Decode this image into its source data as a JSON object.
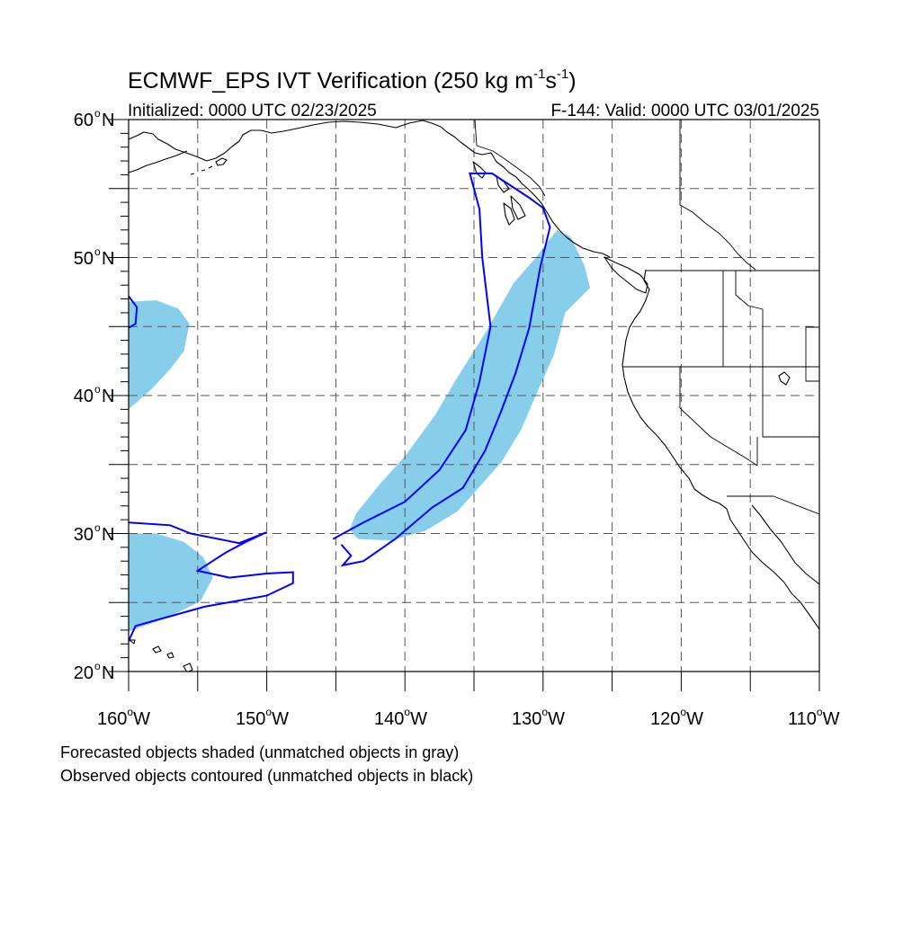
{
  "title": {
    "main": "ECMWF_EPS IVT Verification (250 kg m",
    "sup1": "-1",
    "mid": "s",
    "sup2": "-1",
    "end": ")"
  },
  "initialized": "Initialized: 0000 UTC 02/23/2025",
  "valid": "F-144: Valid: 0000 UTC 03/01/2025",
  "lat_labels": [
    "60",
    "50",
    "40",
    "30",
    "20"
  ],
  "lat_suffix": "N",
  "lon_labels": [
    "160",
    "150",
    "140",
    "130",
    "120",
    "110"
  ],
  "lon_suffix": "W",
  "degree_symbol": "o",
  "legend": {
    "line1": "Forecasted objects shaded (unmatched objects in gray)",
    "line2": "Observed objects contoured (unmatched objects in black)"
  },
  "colors": {
    "forecast_fill": "#87ceeb",
    "observed_contour": "#0000ff",
    "coastline": "#000000",
    "grid": "#555555"
  },
  "map_data": {
    "projection": "cylindrical equidistant",
    "lon_range": [
      -160,
      -110
    ],
    "lat_range": [
      20,
      60
    ],
    "grid_lon_step": 5,
    "grid_lat_step": 5,
    "forecast_objects": [
      {
        "name": "atmospheric-river",
        "matched": true,
        "lonlat": [
          [
            -143.4,
            29.6
          ],
          [
            -141,
            29.5
          ],
          [
            -138.5,
            30.2
          ],
          [
            -136.2,
            31.6
          ],
          [
            -134.5,
            33.5
          ],
          [
            -133,
            35.2
          ],
          [
            -131.6,
            37.5
          ],
          [
            -130.3,
            40.5
          ],
          [
            -129.2,
            43
          ],
          [
            -128.4,
            46
          ],
          [
            -126.6,
            47.8
          ],
          [
            -127,
            49.4
          ],
          [
            -128,
            51.5
          ],
          [
            -129,
            52
          ],
          [
            -130.6,
            49.9
          ],
          [
            -132.1,
            48.2
          ],
          [
            -134.2,
            44.5
          ],
          [
            -136.4,
            41
          ],
          [
            -137.8,
            38.6
          ],
          [
            -140,
            35.6
          ],
          [
            -141.8,
            33.6
          ],
          [
            -143.5,
            31.5
          ],
          [
            -144,
            30.3
          ]
        ]
      },
      {
        "name": "subtropical-object",
        "matched": true,
        "lonlat": [
          [
            -160,
            22.9
          ],
          [
            -157,
            24
          ],
          [
            -154.8,
            25.1
          ],
          [
            -153.9,
            26.8
          ],
          [
            -154.6,
            28.3
          ],
          [
            -156,
            29.4
          ],
          [
            -158,
            30
          ],
          [
            -160,
            30
          ]
        ]
      },
      {
        "name": "northwest-object",
        "matched": true,
        "lonlat": [
          [
            -160,
            39
          ],
          [
            -158.3,
            40.5
          ],
          [
            -157,
            41.9
          ],
          [
            -156,
            43.2
          ],
          [
            -155.6,
            45.2
          ],
          [
            -156.4,
            46.3
          ],
          [
            -158,
            46.9
          ],
          [
            -160,
            46.8
          ]
        ]
      }
    ],
    "observed_objects": [
      {
        "name": "atmospheric-river",
        "matched": true,
        "lonlat": [
          [
            -145.2,
            29.6
          ],
          [
            -143,
            30.8
          ],
          [
            -140,
            32.3
          ],
          [
            -137.5,
            34.6
          ],
          [
            -135.6,
            37.5
          ],
          [
            -134.6,
            41
          ],
          [
            -133.8,
            45
          ],
          [
            -134.4,
            50
          ],
          [
            -134.6,
            53.5
          ],
          [
            -135.3,
            56.1
          ],
          [
            -133.7,
            56.1
          ],
          [
            -131.1,
            54.4
          ],
          [
            -130,
            53.6
          ],
          [
            -129.5,
            52.2
          ],
          [
            -130.2,
            49.3
          ],
          [
            -131,
            44.9
          ],
          [
            -132,
            41.6
          ],
          [
            -133.1,
            38.7
          ],
          [
            -134.2,
            36
          ],
          [
            -135.8,
            33.3
          ],
          [
            -138,
            31.9
          ],
          [
            -140.7,
            29.6
          ],
          [
            -143,
            28
          ],
          [
            -144.5,
            27.7
          ],
          [
            -143.9,
            28.4
          ],
          [
            -144.6,
            29.2
          ]
        ]
      },
      {
        "name": "subtropical-object",
        "matched": true,
        "lonlat": [
          [
            -160,
            30.8
          ],
          [
            -157,
            30.6
          ],
          [
            -155.5,
            30
          ],
          [
            -152,
            29.3
          ],
          [
            -150,
            30.1
          ],
          [
            -151.5,
            29.4
          ],
          [
            -153,
            28.6
          ],
          [
            -155,
            27.3
          ],
          [
            -152.7,
            26.8
          ],
          [
            -150,
            27.1
          ],
          [
            -148.1,
            27.2
          ],
          [
            -148.1,
            26.4
          ],
          [
            -150,
            25.5
          ],
          [
            -154.5,
            24.7
          ],
          [
            -157,
            24
          ],
          [
            -159.5,
            23.3
          ],
          [
            -160,
            22.2
          ]
        ]
      },
      {
        "name": "northwest-object",
        "matched": true,
        "lonlat": [
          [
            -160,
            47.2
          ],
          [
            -159.4,
            46.4
          ],
          [
            -159.5,
            45.2
          ],
          [
            -160,
            44.9
          ]
        ]
      }
    ]
  }
}
